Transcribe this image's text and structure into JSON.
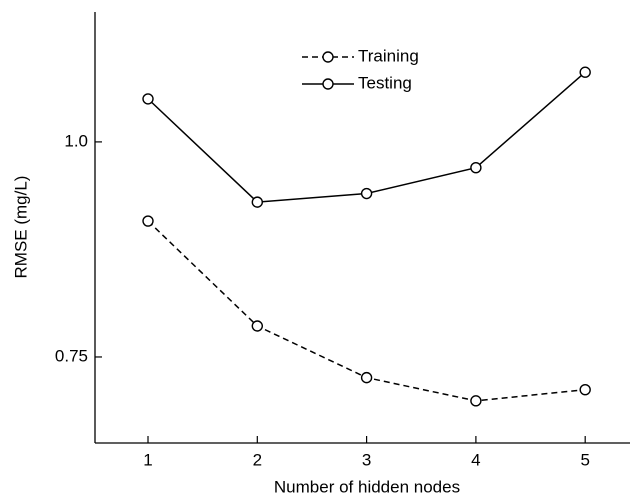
{
  "chart_data": {
    "type": "line",
    "x": [
      1,
      2,
      3,
      4,
      5
    ],
    "series": [
      {
        "name": "Training",
        "color": "#000000",
        "dash": true,
        "values": [
          0.908,
          0.786,
          0.726,
          0.699,
          0.712
        ]
      },
      {
        "name": "Testing",
        "color": "#000000",
        "dash": false,
        "values": [
          1.05,
          0.93,
          0.94,
          0.97,
          1.081
        ]
      }
    ],
    "xlabel": "Number of hidden nodes",
    "ylabel": "RMSE (mg/L)",
    "xlim": [
      0.515,
      5.41
    ],
    "ylim": [
      0.65,
      1.151
    ],
    "xticks": [
      1,
      2,
      3,
      4,
      5
    ],
    "yticks": [
      0.75,
      {
        "value": 1.0,
        "label": "1.0"
      }
    ],
    "grid": false,
    "legend": "upper center"
  }
}
